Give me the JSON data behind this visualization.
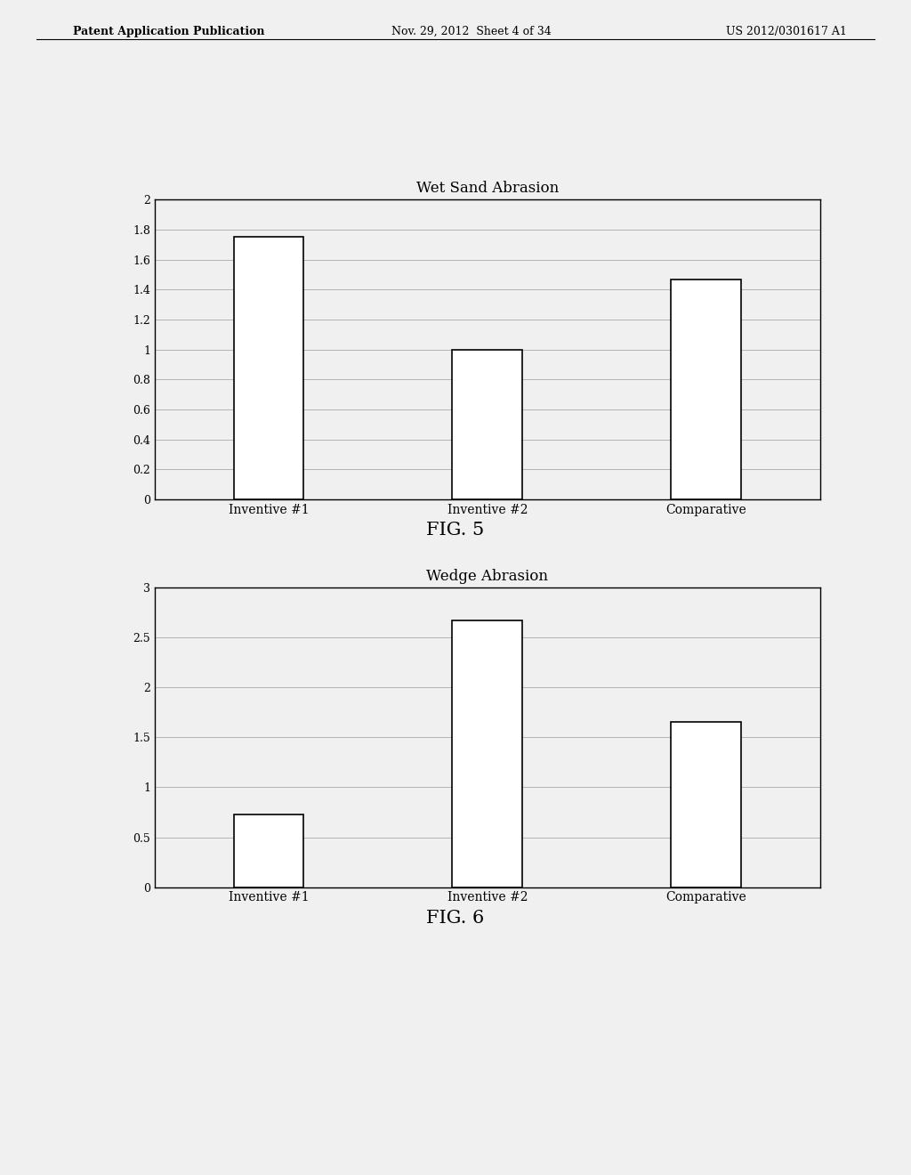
{
  "fig1": {
    "title": "Wet Sand Abrasion",
    "categories": [
      "Inventive #1",
      "Inventive #2",
      "Comparative"
    ],
    "values": [
      1.75,
      1.0,
      1.47
    ],
    "ylim": [
      0,
      2
    ],
    "yticks": [
      0,
      0.2,
      0.4,
      0.6,
      0.8,
      1.0,
      1.2,
      1.4,
      1.6,
      1.8,
      2.0
    ],
    "ytick_labels": [
      "0",
      "0.2",
      "0.4",
      "0.6",
      "0.8",
      "1",
      "1.2",
      "1.4",
      "1.6",
      "1.8",
      "2"
    ],
    "fig_label": "FIG. 5"
  },
  "fig2": {
    "title": "Wedge Abrasion",
    "categories": [
      "Inventive #1",
      "Inventive #2",
      "Comparative"
    ],
    "values": [
      0.73,
      2.67,
      1.65
    ],
    "ylim": [
      0,
      3
    ],
    "yticks": [
      0,
      0.5,
      1.0,
      1.5,
      2.0,
      2.5,
      3.0
    ],
    "ytick_labels": [
      "0",
      "0.5",
      "1",
      "1.5",
      "2",
      "2.5",
      "3"
    ],
    "fig_label": "FIG. 6"
  },
  "header_left": "Patent Application Publication",
  "header_mid": "Nov. 29, 2012  Sheet 4 of 34",
  "header_right": "US 2012/0301617 A1",
  "background_color": "#f0f0f0",
  "bar_color": "#ffffff",
  "bar_edge_color": "#000000",
  "bar_linewidth": 1.2,
  "grid_color": "#aaaaaa",
  "grid_linewidth": 0.6,
  "title_fontsize": 12,
  "tick_fontsize": 9,
  "xlabel_fontsize": 10,
  "fig_label_fontsize": 15
}
